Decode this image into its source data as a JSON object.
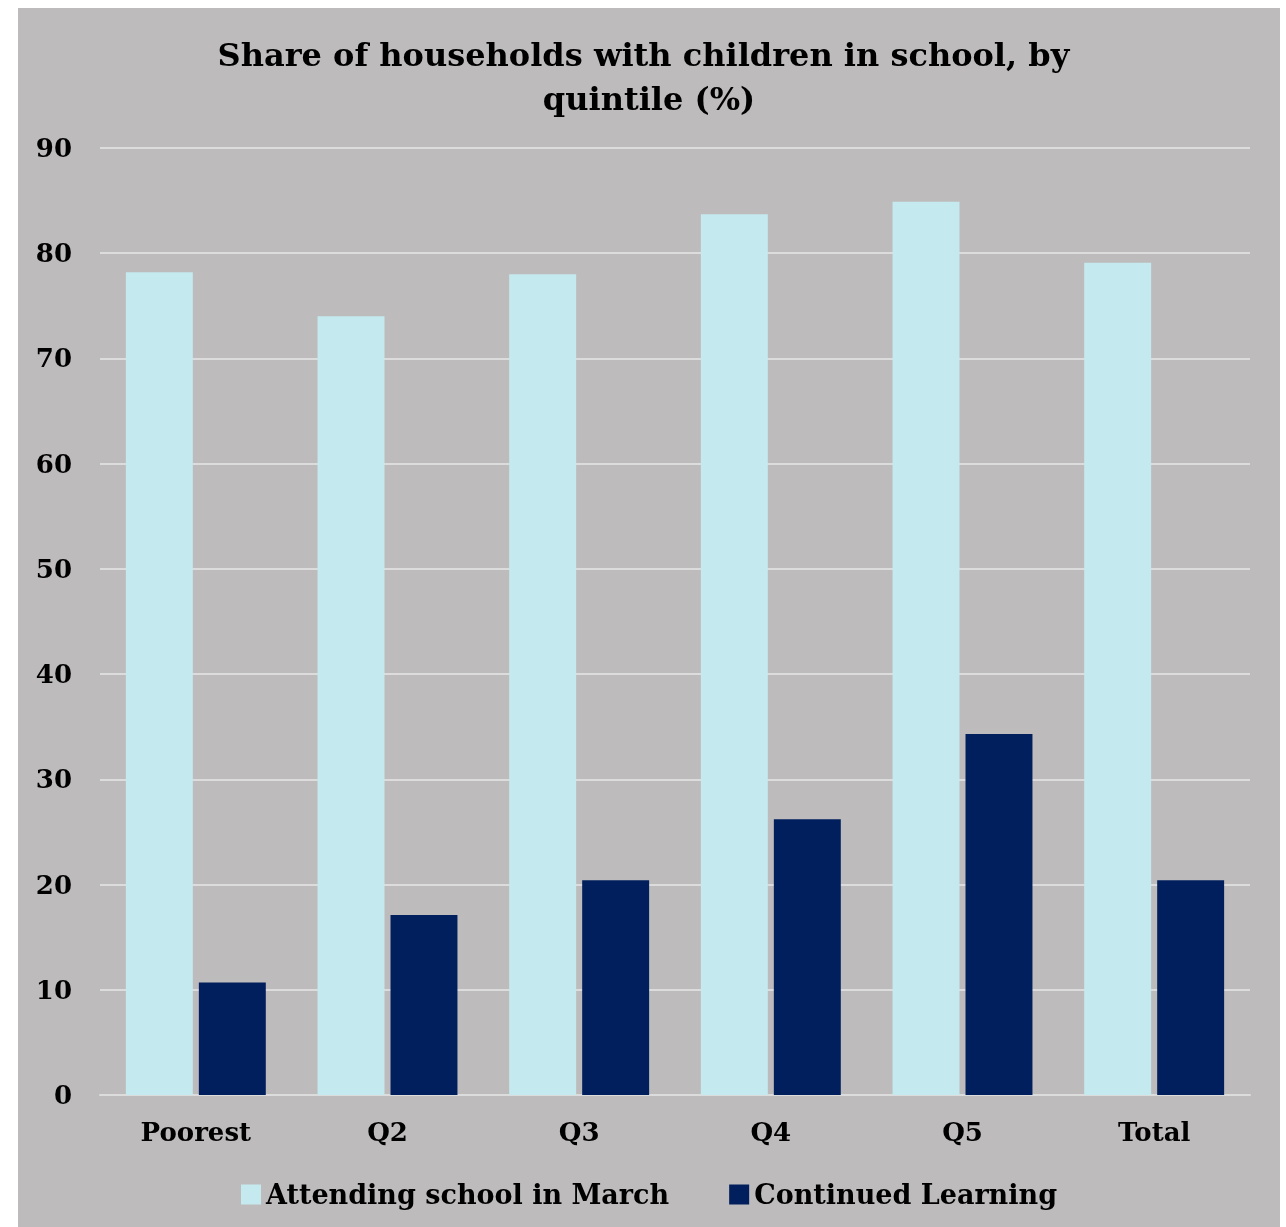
{
  "chart_data": {
    "type": "bar",
    "title": "Share of households with children in school, by quintile (%)",
    "categories": [
      "Poorest",
      "Q2",
      "Q3",
      "Q4",
      "Q5",
      "Total"
    ],
    "series": [
      {
        "name": "Attending school in March",
        "color": "#c4eaef",
        "values": [
          78.2,
          74.0,
          78.0,
          83.7,
          84.9,
          79.1
        ]
      },
      {
        "name": "Continued Learning",
        "color": "#001f5c",
        "values": [
          10.7,
          17.1,
          20.4,
          26.2,
          34.3,
          20.4
        ]
      }
    ],
    "ylim": [
      0,
      90
    ],
    "yticks": [
      0,
      10,
      20,
      30,
      40,
      50,
      60,
      70,
      80,
      90
    ],
    "grid": "y",
    "legend": "bottom"
  }
}
